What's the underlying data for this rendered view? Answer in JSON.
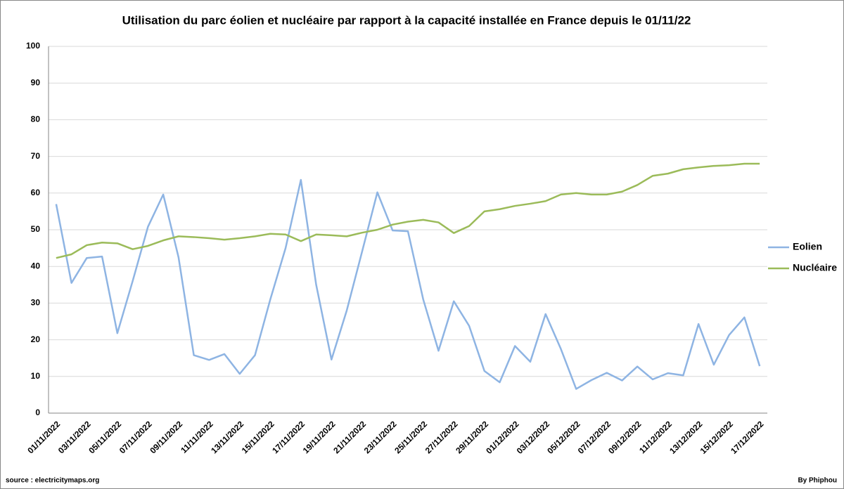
{
  "chart_data": {
    "type": "line",
    "title": "Utilisation du parc éolien et nucléaire par rapport à la capacité installée en France depuis le 01/11/22",
    "source": "source : electricitymaps.org",
    "author": "By Phiphou",
    "categories": [
      "01/11/2022",
      null,
      "03/11/2022",
      null,
      "05/11/2022",
      null,
      "07/11/2022",
      null,
      "09/11/2022",
      null,
      "11/11/2022",
      null,
      "13/11/2022",
      null,
      "15/11/2022",
      null,
      "17/11/2022",
      null,
      "19/11/2022",
      null,
      "21/11/2022",
      null,
      "23/11/2022",
      null,
      "25/11/2022",
      null,
      "27/11/2022",
      null,
      "29/11/2022",
      null,
      "01/12/2022",
      null,
      "03/12/2022",
      null,
      "05/12/2022",
      null,
      "07/12/2022",
      null,
      "09/12/2022",
      null,
      "11/12/2022",
      null,
      "13/12/2022",
      null,
      "15/12/2022",
      null,
      "17/12/2022"
    ],
    "series": [
      {
        "name": "Eolien",
        "color": "#8eb4e3",
        "values": [
          57,
          35.5,
          42.3,
          42.7,
          21.8,
          36,
          50.8,
          59.6,
          42.5,
          15.8,
          14.5,
          16.1,
          10.7,
          15.8,
          31,
          45,
          63.6,
          35,
          14.6,
          28,
          44,
          60.2,
          49.8,
          49.6,
          31,
          17,
          30.5,
          23.8,
          11.5,
          8.4,
          18.3,
          14,
          27,
          17.5,
          6.6,
          9,
          11,
          8.9,
          12.7,
          9.2,
          10.9,
          10.3,
          24.3,
          13.2,
          21.3,
          26.1,
          12.8
        ]
      },
      {
        "name": "Nucléaire",
        "color": "#9bbb59",
        "values": [
          42.3,
          43.3,
          45.8,
          46.5,
          46.3,
          44.7,
          45.6,
          47.1,
          48.2,
          48,
          47.7,
          47.3,
          47.7,
          48.2,
          48.9,
          48.7,
          46.9,
          48.7,
          48.5,
          48.2,
          49.2,
          50,
          51.4,
          52.2,
          52.7,
          52,
          49.1,
          51,
          55,
          55.6,
          56.5,
          57.1,
          57.8,
          59.6,
          60,
          59.6,
          59.6,
          60.4,
          62.2,
          64.7,
          65.3,
          66.5,
          67,
          67.4,
          67.6,
          68,
          68
        ]
      }
    ],
    "ylim": [
      0,
      100
    ],
    "yticks": [
      0,
      10,
      20,
      30,
      40,
      50,
      60,
      70,
      80,
      90,
      100
    ],
    "grid": true,
    "legend": "right"
  }
}
